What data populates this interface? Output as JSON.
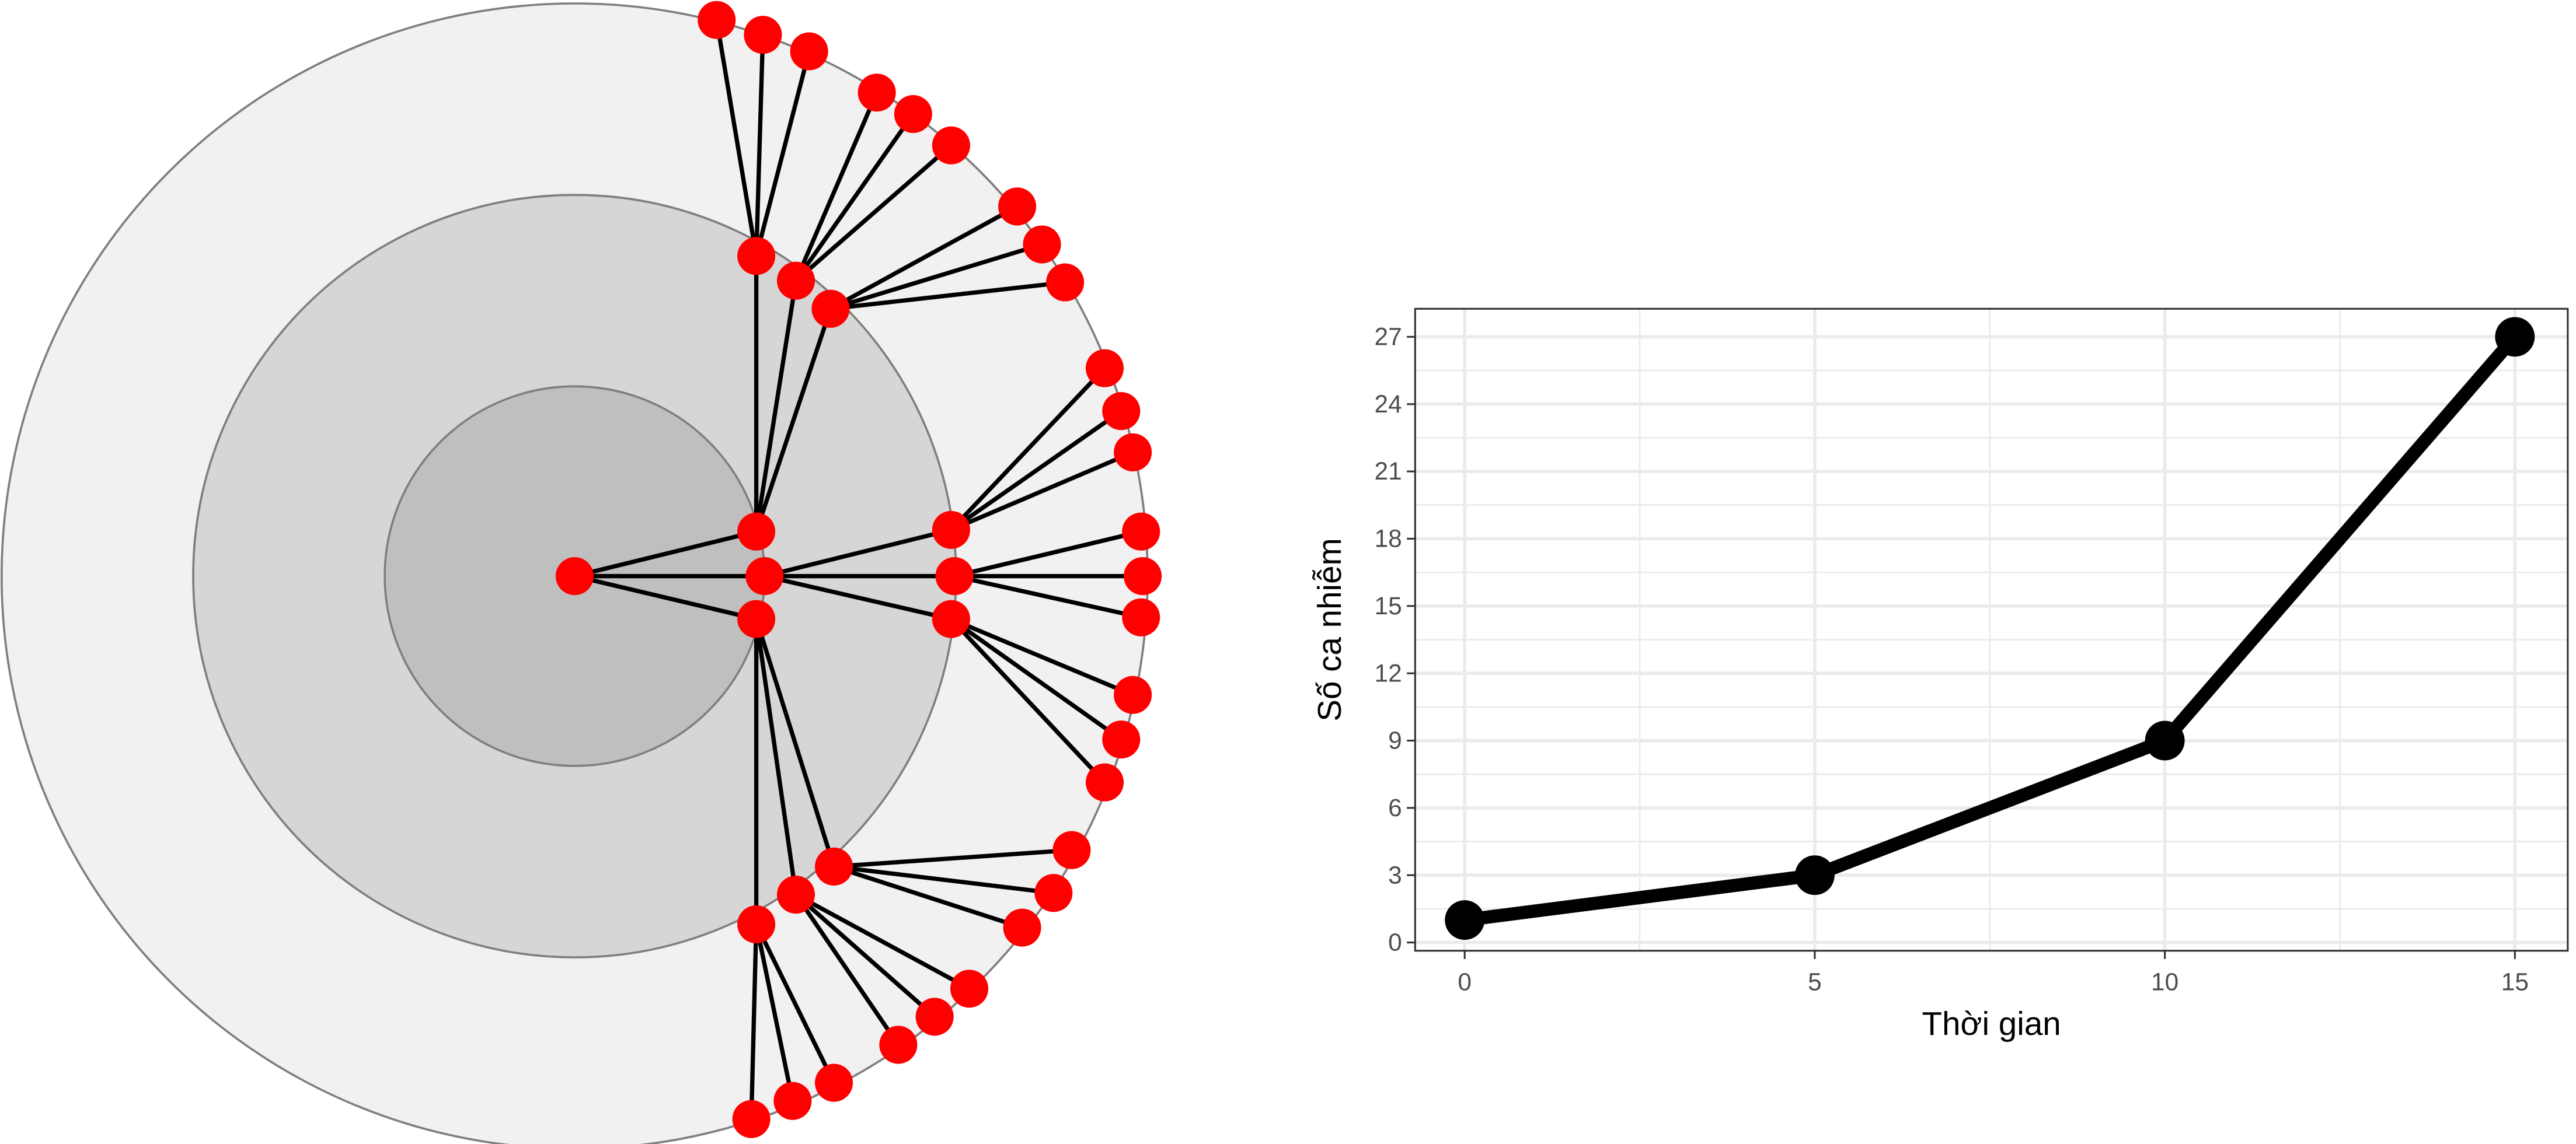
{
  "diagram": {
    "description_counts_per_generation": [
      1,
      3,
      9,
      27
    ],
    "colors": {
      "node": "#ff0000",
      "edge": "#000000",
      "ring_inner": "#bfbfbf",
      "ring_middle": "#d6d6d6",
      "ring_outer": "#f1f1f1",
      "ring_stroke": "#7f7f7f"
    }
  },
  "chart_data": {
    "type": "line",
    "title": "",
    "xlabel": "Thời gian",
    "ylabel": "Số ca nhiễm",
    "x": [
      0,
      5,
      10,
      15
    ],
    "series": [
      {
        "name": "Số ca nhiễm",
        "values": [
          1,
          3,
          9,
          27
        ]
      }
    ],
    "xlim": [
      -0.7,
      15.7
    ],
    "ylim": [
      -0.4,
      28.4
    ],
    "xticks": [
      "0",
      "5",
      "10",
      "15"
    ],
    "yticks": [
      "0",
      "3",
      "6",
      "9",
      "12",
      "15",
      "18",
      "21",
      "24",
      "27"
    ],
    "grid": true,
    "legend": "none",
    "colors": {
      "line": "#000000",
      "grid": "#ebebeb",
      "border": "#333333"
    }
  }
}
